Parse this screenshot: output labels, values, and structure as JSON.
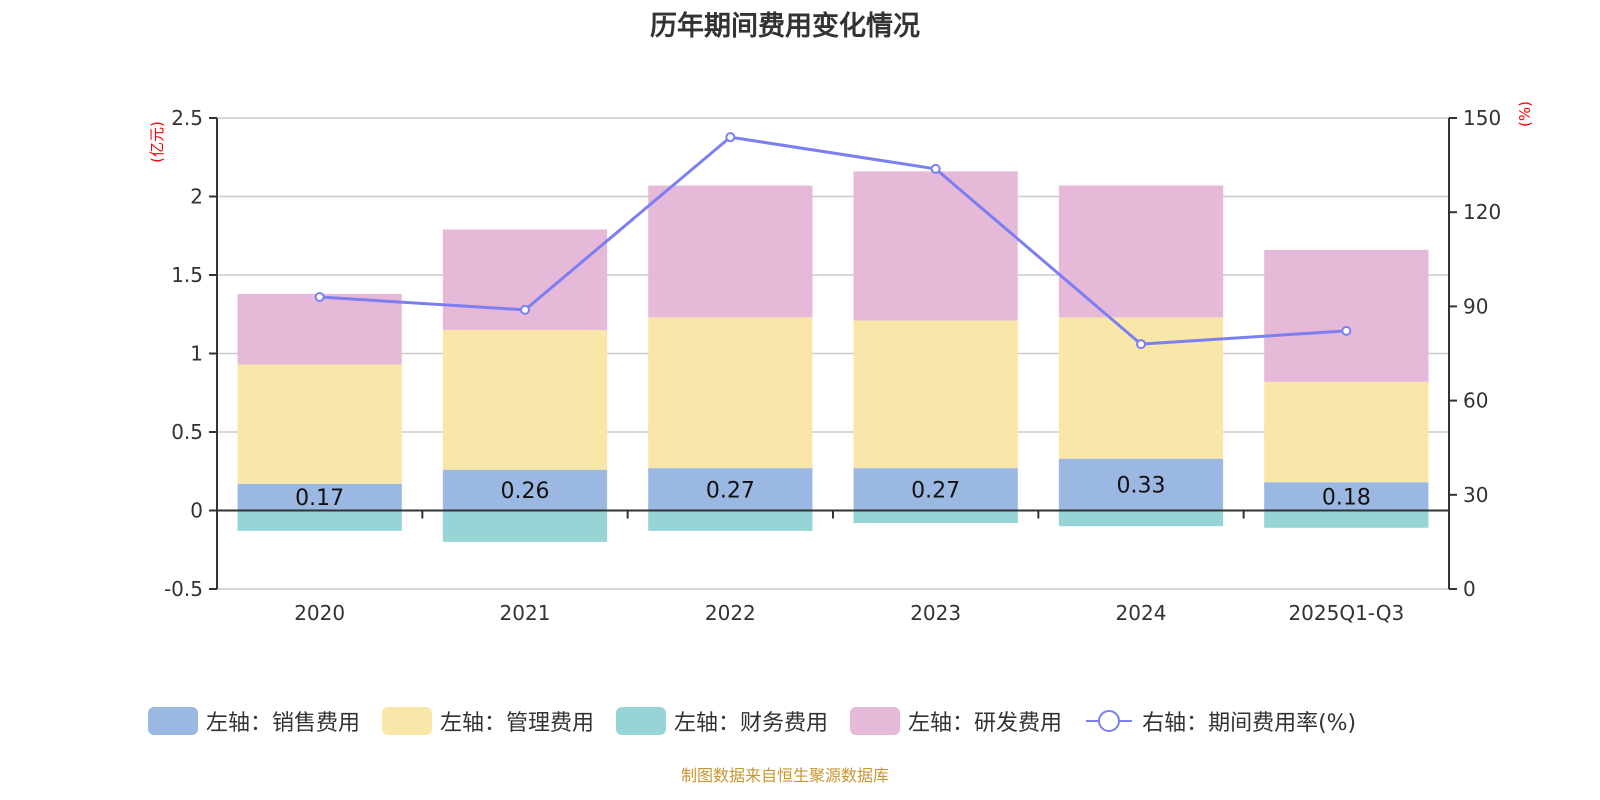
{
  "chart_data": {
    "type": "bar",
    "stacked": true,
    "title": "历年期间费用变化情况",
    "categories": [
      "2020",
      "2021",
      "2022",
      "2023",
      "2024",
      "2025Q1-Q3"
    ],
    "left_axis": {
      "unit_label": "(亿元)",
      "ylim": [
        -0.5,
        2.5
      ],
      "ticks": [
        -0.5,
        0,
        0.5,
        1,
        1.5,
        2,
        2.5
      ],
      "tick_labels": [
        "-0.5",
        "0",
        "0.5",
        "1",
        "1.5",
        "2",
        "2.5"
      ]
    },
    "right_axis": {
      "unit_label": "(%)",
      "ylim": [
        0,
        150
      ],
      "ticks": [
        0,
        30,
        60,
        90,
        120,
        150
      ],
      "tick_labels": [
        "0",
        "30",
        "60",
        "90",
        "120",
        "150"
      ]
    },
    "grid": true,
    "series": [
      {
        "name": "左轴：销售费用",
        "axis": "left",
        "type": "bar",
        "color": "#9bb8e2",
        "values": [
          0.17,
          0.26,
          0.27,
          0.27,
          0.33,
          0.18
        ],
        "data_labels": [
          "0.17",
          "0.26",
          "0.27",
          "0.27",
          "0.33",
          "0.18"
        ]
      },
      {
        "name": "左轴：管理费用",
        "axis": "left",
        "type": "bar",
        "color": "#f8e7a9",
        "values": [
          0.76,
          0.89,
          0.96,
          0.94,
          0.9,
          0.64
        ]
      },
      {
        "name": "左轴：财务费用",
        "axis": "left",
        "type": "bar",
        "color": "#97d4d5",
        "values": [
          -0.13,
          -0.2,
          -0.13,
          -0.08,
          -0.1,
          -0.11
        ]
      },
      {
        "name": "左轴：研发费用",
        "axis": "left",
        "type": "bar",
        "color": "#e7b9d9",
        "values": [
          0.45,
          0.64,
          0.84,
          0.95,
          0.84,
          0.84
        ]
      },
      {
        "name": "右轴：期间费用率(%)",
        "axis": "right",
        "type": "line",
        "color": "#7b7ff2",
        "values": [
          93.0,
          88.9,
          143.9,
          133.8,
          78.0,
          82.2
        ]
      }
    ],
    "legend_position": "bottom"
  },
  "source_note": "制图数据来自恒生聚源数据库"
}
